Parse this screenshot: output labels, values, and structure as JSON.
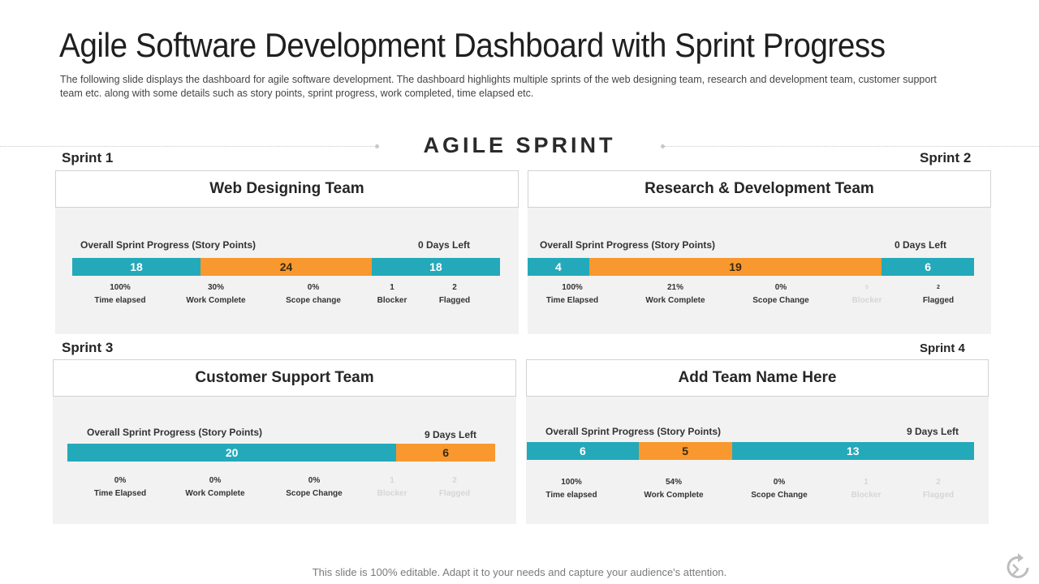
{
  "title": "Agile Software Development Dashboard with Sprint Progress",
  "subtitle": "The following slide displays the dashboard for agile software development. The dashboard highlights multiple sprints of the web designing team, research and development team, customer support team etc. along with some details such as story points, sprint progress, work completed, time elapsed etc.",
  "section_title": "AGILE SPRINT",
  "colors": {
    "teal": "#23a9ba",
    "orange": "#f8982f",
    "panel": "#f2f2f2"
  },
  "sprints": [
    {
      "label": "Sprint 1",
      "team": "Web Designing Team",
      "progress_label": "Overall Sprint Progress (Story Points)",
      "days_left": "0 Days Left",
      "bar": [
        {
          "value": "18",
          "color": "teal"
        },
        {
          "value": "24",
          "color": "orange"
        },
        {
          "value": "18",
          "color": "teal"
        }
      ],
      "stats": [
        {
          "value": "100%",
          "label": "Time elapsed"
        },
        {
          "value": "30%",
          "label": "Work Complete"
        },
        {
          "value": "0%",
          "label": "Scope change"
        },
        {
          "value": "1",
          "label": "Blocker"
        },
        {
          "value": "2",
          "label": "Flagged"
        }
      ]
    },
    {
      "label": "Sprint 2",
      "team": "Research & Development Team",
      "progress_label": "Overall Sprint Progress (Story Points)",
      "days_left": "0 Days Left",
      "bar": [
        {
          "value": "4",
          "color": "teal"
        },
        {
          "value": "19",
          "color": "orange"
        },
        {
          "value": "6",
          "color": "teal"
        }
      ],
      "stats": [
        {
          "value": "100%",
          "label": "Time Elapsed"
        },
        {
          "value": "21%",
          "label": "Work Complete"
        },
        {
          "value": "0%",
          "label": "Scope Change"
        },
        {
          "value": "0",
          "label": "Blocker"
        },
        {
          "value": "2",
          "label": "Flagged"
        }
      ]
    },
    {
      "label": "Sprint 3",
      "team": "Customer Support Team",
      "progress_label": "Overall Sprint Progress (Story Points)",
      "days_left": "9 Days Left",
      "bar": [
        {
          "value": "20",
          "color": "teal"
        },
        {
          "value": "6",
          "color": "orange"
        }
      ],
      "stats": [
        {
          "value": "0%",
          "label": "Time Elapsed"
        },
        {
          "value": "0%",
          "label": "Work Complete"
        },
        {
          "value": "0%",
          "label": "Scope Change"
        },
        {
          "value": "1",
          "label": "Blocker"
        },
        {
          "value": "2",
          "label": "Flagged"
        }
      ]
    },
    {
      "label": "Sprint 4",
      "team": "Add Team Name Here",
      "progress_label": "Overall Sprint Progress (Story Points)",
      "days_left": "9 Days Left",
      "bar": [
        {
          "value": "6",
          "color": "teal"
        },
        {
          "value": "5",
          "color": "orange"
        },
        {
          "value": "13",
          "color": "teal"
        }
      ],
      "stats": [
        {
          "value": "100%",
          "label": "Time elapsed"
        },
        {
          "value": "54%",
          "label": "Work Complete"
        },
        {
          "value": "0%",
          "label": "Scope Change"
        },
        {
          "value": "1",
          "label": "Blocker"
        },
        {
          "value": "2",
          "label": "Flagged"
        }
      ]
    }
  ],
  "footer": "This slide is 100% editable. Adapt it to your needs and capture your audience's attention.",
  "logo_icon": "refresh-arrow-icon"
}
